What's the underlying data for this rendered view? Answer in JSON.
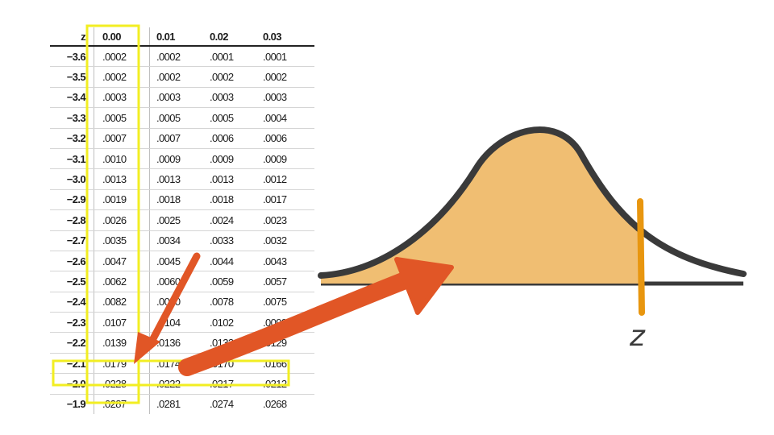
{
  "table": {
    "headers": [
      "z",
      "0.00",
      "0.01",
      "0.02",
      "0.03"
    ],
    "rows": [
      [
        "−3.6",
        ".0002",
        ".0002",
        ".0001",
        ".0001"
      ],
      [
        "−3.5",
        ".0002",
        ".0002",
        ".0002",
        ".0002"
      ],
      [
        "−3.4",
        ".0003",
        ".0003",
        ".0003",
        ".0003"
      ],
      [
        "−3.3",
        ".0005",
        ".0005",
        ".0005",
        ".0004"
      ],
      [
        "−3.2",
        ".0007",
        ".0007",
        ".0006",
        ".0006"
      ],
      [
        "−3.1",
        ".0010",
        ".0009",
        ".0009",
        ".0009"
      ],
      [
        "−3.0",
        ".0013",
        ".0013",
        ".0013",
        ".0012"
      ],
      [
        "−2.9",
        ".0019",
        ".0018",
        ".0018",
        ".0017"
      ],
      [
        "−2.8",
        ".0026",
        ".0025",
        ".0024",
        ".0023"
      ],
      [
        "−2.7",
        ".0035",
        ".0034",
        ".0033",
        ".0032"
      ],
      [
        "−2.6",
        ".0047",
        ".0045",
        ".0044",
        ".0043"
      ],
      [
        "−2.5",
        ".0062",
        ".0060",
        ".0059",
        ".0057"
      ],
      [
        "−2.4",
        ".0082",
        ".0080",
        ".0078",
        ".0075"
      ],
      [
        "−2.3",
        ".0107",
        ".0104",
        ".0102",
        ".0099"
      ],
      [
        "−2.2",
        ".0139",
        ".0136",
        ".0132",
        ".0129"
      ],
      [
        "−2.1",
        ".0179",
        ".0174",
        ".0170",
        ".0166"
      ],
      [
        "−2.0",
        ".0228",
        ".0222",
        ".0217",
        ".0212"
      ],
      [
        "−1.9",
        ".0287",
        ".0281",
        ".0274",
        ".0268"
      ]
    ],
    "highlighted_column": "0.00",
    "highlighted_row": "−2.0"
  },
  "curve": {
    "label": "z",
    "fill_color": "#F0BE72",
    "outline_color": "#3a3a3a",
    "marker_color": "#E8960F"
  },
  "annotations": {
    "highlight_color": "#F2EE22",
    "arrow_color": "#E15626"
  }
}
